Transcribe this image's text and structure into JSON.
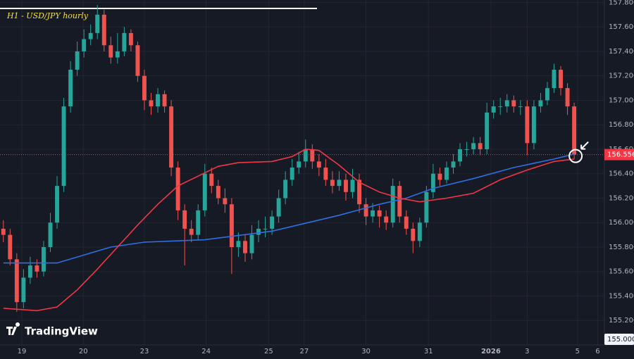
{
  "chart_data": {
    "type": "candlestick",
    "title": "H1 - USD/JPY hourly",
    "brand": "TradingView",
    "xlim": [
      -0.5,
      89.5
    ],
    "xticks": [
      {
        "value": 2.75,
        "label": "19"
      },
      {
        "value": 11.9,
        "label": "20"
      },
      {
        "value": 21.0,
        "label": "23"
      },
      {
        "value": 30.2,
        "label": "24"
      },
      {
        "value": 39.5,
        "label": "25"
      },
      {
        "value": 44.8,
        "label": "27"
      },
      {
        "value": 54.0,
        "label": "30"
      },
      {
        "value": 63.3,
        "label": "31"
      },
      {
        "value": 72.6,
        "label": "2026"
      },
      {
        "value": 78.0,
        "label": "3"
      },
      {
        "value": 85.5,
        "label": "5"
      },
      {
        "value": 88.5,
        "label": "6"
      }
    ],
    "ylim": [
      155.0,
      157.82
    ],
    "yticks": [
      {
        "value": 157.8,
        "label": "157.800"
      },
      {
        "value": 157.6,
        "label": "157.600"
      },
      {
        "value": 157.4,
        "label": "157.400"
      },
      {
        "value": 157.2,
        "label": "157.200"
      },
      {
        "value": 157.0,
        "label": "157.000"
      },
      {
        "value": 156.8,
        "label": "156.800"
      },
      {
        "value": 156.6,
        "label": "156.600"
      },
      {
        "value": 156.4,
        "label": "156.400"
      },
      {
        "value": 156.2,
        "label": "156.200"
      },
      {
        "value": 156.0,
        "label": "156.000"
      },
      {
        "value": 155.8,
        "label": "155.800"
      },
      {
        "value": 155.6,
        "label": "155.600"
      },
      {
        "value": 155.4,
        "label": "155.400"
      },
      {
        "value": 155.2,
        "label": "155.200"
      }
    ],
    "grid": true,
    "up_color": "#26a69a",
    "down_color": "#ef5350",
    "x": [
      0,
      1,
      2,
      3,
      4,
      5,
      6,
      7,
      8,
      9,
      10,
      11,
      12,
      13,
      14,
      15,
      16,
      17,
      18,
      19,
      20,
      21,
      22,
      23,
      24,
      25,
      26,
      27,
      28,
      29,
      30,
      31,
      32,
      33,
      34,
      35,
      36,
      37,
      38,
      39,
      40,
      41,
      42,
      43,
      44,
      45,
      46,
      47,
      48,
      49,
      50,
      51,
      52,
      53,
      54,
      55,
      56,
      57,
      58,
      59,
      60,
      61,
      62,
      63,
      64,
      65,
      66,
      67,
      68,
      69,
      70,
      71,
      72,
      73,
      74,
      75,
      76,
      77,
      78,
      79,
      80,
      81,
      82,
      83,
      84,
      85
    ],
    "open": [
      155.95,
      155.9,
      155.7,
      155.35,
      155.55,
      155.65,
      155.6,
      155.8,
      156.0,
      156.3,
      156.95,
      157.25,
      157.4,
      157.5,
      157.55,
      157.7,
      157.45,
      157.35,
      157.4,
      157.55,
      157.45,
      157.2,
      157.0,
      156.95,
      157.05,
      156.95,
      156.45,
      156.1,
      155.95,
      155.9,
      156.1,
      156.4,
      156.3,
      156.2,
      156.15,
      155.8,
      155.85,
      155.75,
      155.9,
      155.95,
      155.95,
      156.05,
      156.2,
      156.35,
      156.45,
      156.5,
      156.6,
      156.5,
      156.45,
      156.35,
      156.3,
      156.35,
      156.25,
      156.35,
      156.15,
      156.05,
      156.1,
      156.05,
      156.0,
      156.3,
      156.05,
      155.95,
      155.85,
      156.0,
      156.25,
      156.4,
      156.35,
      156.45,
      156.5,
      156.6,
      156.6,
      156.65,
      156.6,
      156.9,
      156.95,
      156.95,
      157.0,
      156.95,
      156.95,
      156.65,
      156.95,
      157.0,
      157.1,
      157.25,
      157.1,
      156.95
    ],
    "high": [
      156.02,
      155.95,
      155.75,
      155.62,
      155.72,
      155.7,
      155.85,
      156.08,
      156.38,
      157.02,
      157.32,
      157.48,
      157.58,
      157.62,
      157.78,
      157.74,
      157.52,
      157.55,
      157.6,
      157.58,
      157.48,
      157.25,
      157.06,
      157.1,
      157.08,
      157.0,
      156.5,
      156.15,
      156.02,
      156.15,
      156.48,
      156.45,
      156.35,
      156.28,
      156.2,
      155.92,
      155.9,
      155.98,
      156.02,
      156.05,
      156.1,
      156.27,
      156.42,
      156.52,
      156.58,
      156.68,
      156.64,
      156.56,
      156.52,
      156.42,
      156.42,
      156.4,
      156.44,
      156.4,
      156.2,
      156.16,
      156.14,
      156.1,
      156.36,
      156.34,
      156.1,
      156.0,
      156.04,
      156.3,
      156.48,
      156.45,
      156.5,
      156.56,
      156.65,
      156.66,
      156.7,
      156.7,
      156.98,
      157.0,
      157.02,
      157.05,
      157.04,
      157.0,
      157.0,
      157.0,
      157.06,
      157.15,
      157.3,
      157.28,
      157.14,
      156.98
    ],
    "low": [
      155.84,
      155.65,
      155.27,
      155.3,
      155.5,
      155.55,
      155.56,
      155.76,
      155.95,
      156.25,
      156.9,
      157.2,
      157.35,
      157.45,
      157.5,
      157.4,
      157.3,
      157.3,
      157.36,
      157.4,
      157.15,
      156.92,
      156.88,
      156.9,
      156.9,
      156.38,
      156.02,
      155.65,
      155.84,
      155.86,
      156.05,
      156.24,
      156.15,
      156.08,
      155.58,
      155.72,
      155.68,
      155.7,
      155.84,
      155.88,
      155.9,
      156.0,
      156.15,
      156.3,
      156.4,
      156.45,
      156.44,
      156.38,
      156.3,
      156.24,
      156.26,
      156.18,
      156.2,
      156.08,
      155.98,
      156.0,
      155.96,
      155.94,
      155.96,
      156.0,
      155.9,
      155.75,
      155.8,
      155.96,
      156.2,
      156.3,
      156.32,
      156.4,
      156.46,
      156.54,
      156.56,
      156.55,
      156.56,
      156.85,
      156.88,
      156.9,
      156.9,
      156.88,
      156.55,
      156.6,
      156.9,
      156.96,
      157.06,
      157.04,
      156.88,
      156.52
    ],
    "close": [
      155.9,
      155.7,
      155.35,
      155.55,
      155.65,
      155.6,
      155.8,
      156.0,
      156.3,
      156.95,
      157.25,
      157.4,
      157.5,
      157.55,
      157.7,
      157.45,
      157.35,
      157.4,
      157.55,
      157.45,
      157.2,
      157.0,
      156.95,
      157.05,
      156.95,
      156.45,
      156.1,
      155.95,
      155.9,
      156.1,
      156.4,
      156.3,
      156.2,
      156.15,
      155.8,
      155.85,
      155.75,
      155.9,
      155.95,
      155.95,
      156.05,
      156.2,
      156.35,
      156.45,
      156.5,
      156.6,
      156.5,
      156.45,
      156.35,
      156.3,
      156.35,
      156.25,
      156.35,
      156.15,
      156.05,
      156.1,
      156.05,
      156.0,
      156.3,
      156.05,
      155.95,
      155.85,
      156.0,
      156.25,
      156.4,
      156.35,
      156.45,
      156.5,
      156.6,
      156.6,
      156.65,
      156.6,
      156.9,
      156.95,
      156.95,
      157.0,
      156.95,
      156.95,
      156.65,
      156.95,
      157.0,
      157.1,
      157.25,
      157.1,
      156.95,
      156.556
    ],
    "moving_averages": [
      {
        "color": "#2f6fe4",
        "x": [
          0,
          8,
          16,
          21,
          30,
          40,
          50,
          56,
          60,
          64,
          70,
          76,
          82,
          85
        ],
        "values": [
          155.67,
          155.67,
          155.8,
          155.84,
          155.86,
          155.93,
          156.06,
          156.15,
          156.2,
          156.28,
          156.36,
          156.45,
          156.52,
          156.56
        ]
      },
      {
        "color": "#f23645",
        "x": [
          0,
          5,
          8,
          11,
          14,
          17,
          20,
          23,
          26,
          29,
          32,
          35,
          40,
          43,
          45,
          47,
          50,
          53,
          56,
          59,
          62,
          66,
          70,
          74,
          78,
          82,
          85
        ],
        "values": [
          155.3,
          155.28,
          155.31,
          155.45,
          155.62,
          155.8,
          155.98,
          156.15,
          156.3,
          156.38,
          156.46,
          156.49,
          156.5,
          156.54,
          156.6,
          156.59,
          156.47,
          156.33,
          156.25,
          156.2,
          156.17,
          156.2,
          156.24,
          156.35,
          156.43,
          156.5,
          156.52
        ]
      }
    ],
    "last_price": {
      "value": 156.556,
      "label": "156.556",
      "color": "#f23645"
    },
    "price_marker": {
      "value": 155.0,
      "label": "155.000"
    }
  }
}
